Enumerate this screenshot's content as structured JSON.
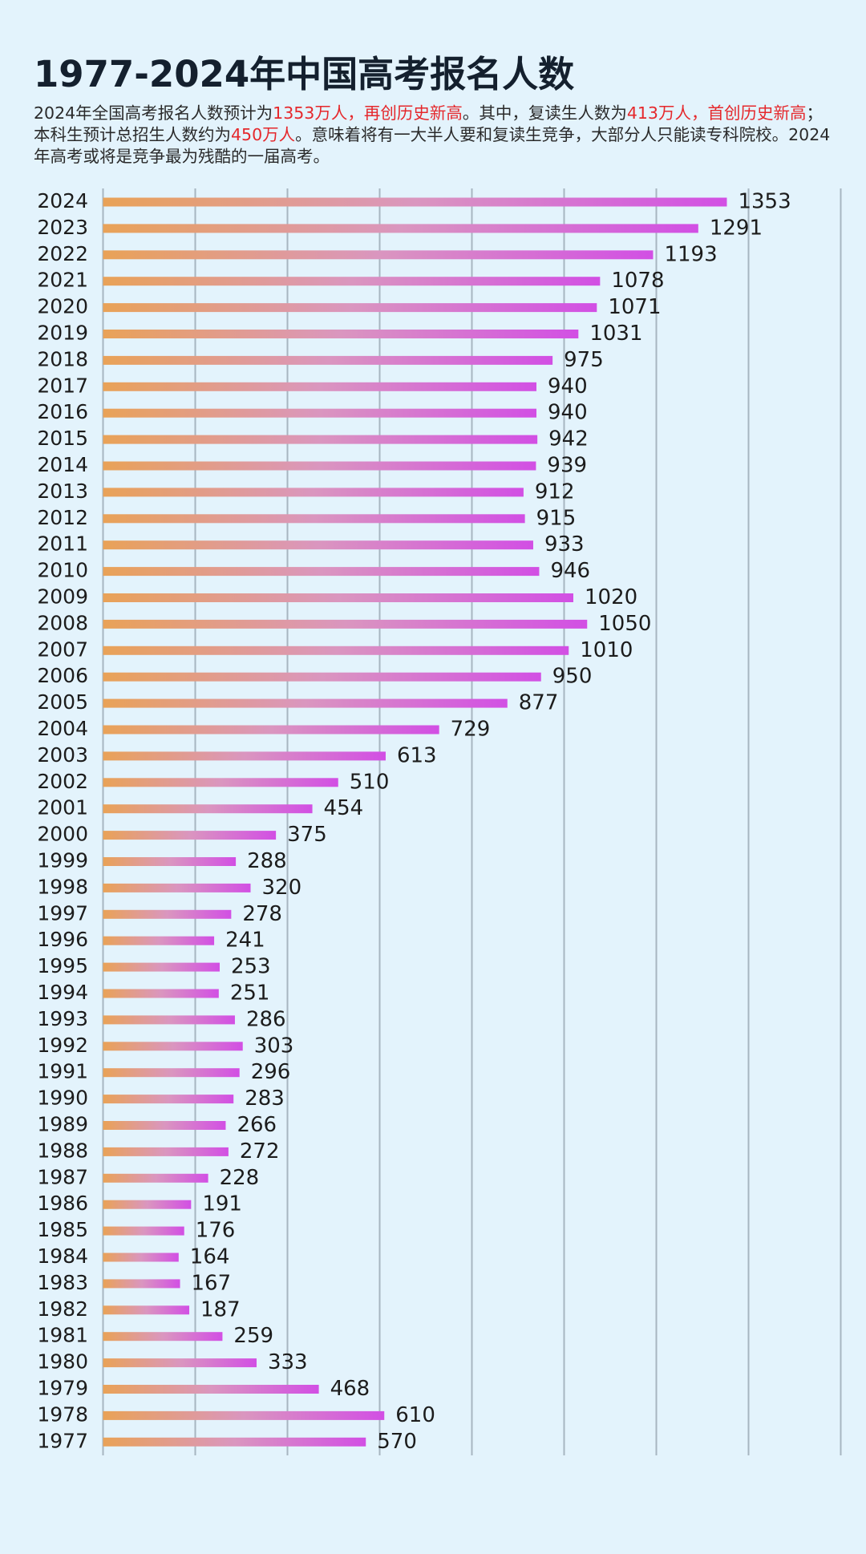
{
  "chart_data": {
    "type": "bar",
    "orientation": "horizontal",
    "title": "1977-2024年中国高考报名人数",
    "subtitle": [
      {
        "text": "2024年全国高考报名人数预计为"
      },
      {
        "text": "1353万人，再创历史新高",
        "color": "#e5282c"
      },
      {
        "text": "。其中，复读生人数为"
      },
      {
        "text": "413万人，首创历史新高",
        "color": "#e5282c"
      },
      {
        "text": "；本科生预计总招生人数约为"
      },
      {
        "text": "450万人",
        "color": "#e5282c"
      },
      {
        "text": "。意味着将有一大半人要和复读生竞争，大部分人只能读专科院校。2024年高考或将是竞争最为残酷的一届高考。"
      }
    ],
    "categories": [
      "2024",
      "2023",
      "2022",
      "2021",
      "2020",
      "2019",
      "2018",
      "2017",
      "2016",
      "2015",
      "2014",
      "2013",
      "2012",
      "2011",
      "2010",
      "2009",
      "2008",
      "2007",
      "2006",
      "2005",
      "2004",
      "2003",
      "2002",
      "2001",
      "2000",
      "1999",
      "1998",
      "1997",
      "1996",
      "1995",
      "1994",
      "1993",
      "1992",
      "1991",
      "1990",
      "1989",
      "1988",
      "1987",
      "1986",
      "1985",
      "1984",
      "1983",
      "1982",
      "1981",
      "1980",
      "1979",
      "1978",
      "1977"
    ],
    "values": [
      1353,
      1291,
      1193,
      1078,
      1071,
      1031,
      975,
      940,
      940,
      942,
      939,
      912,
      915,
      933,
      946,
      1020,
      1050,
      1010,
      950,
      877,
      729,
      613,
      510,
      454,
      375,
      288,
      320,
      278,
      241,
      253,
      251,
      286,
      303,
      296,
      283,
      266,
      272,
      228,
      191,
      176,
      164,
      167,
      187,
      259,
      333,
      468,
      610,
      570
    ],
    "gradient": [
      "#e9a257",
      "#da96bf",
      "#d24fe4"
    ],
    "xlim": [
      0,
      1600
    ],
    "xticks": [
      0,
      200,
      400,
      600,
      800,
      1000,
      1200,
      1400,
      1600
    ],
    "grid": true
  }
}
